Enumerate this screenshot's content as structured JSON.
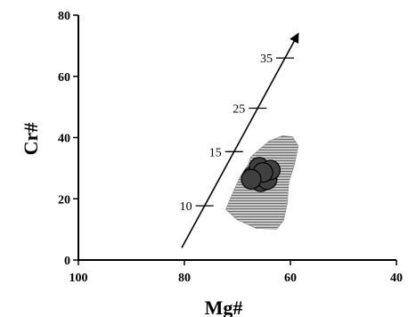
{
  "chart_data": {
    "type": "scatter",
    "xlabel": "Mg#",
    "ylabel": "Cr#",
    "xlim": [
      100,
      40
    ],
    "ylim": [
      0,
      80
    ],
    "x_axis_reversed": true,
    "xticks": [
      100,
      80,
      60,
      40
    ],
    "yticks": [
      0,
      20,
      40,
      60,
      80
    ],
    "grid": false,
    "shaded_field": {
      "color": "#a8a8a8",
      "pattern": "horizontal-lines",
      "polygon": [
        [
          67.5,
          33.7
        ],
        [
          64.0,
          38.9
        ],
        [
          61.5,
          40.6
        ],
        [
          59.6,
          40.3
        ],
        [
          58.5,
          37.3
        ],
        [
          59.2,
          31.4
        ],
        [
          60.3,
          25.4
        ],
        [
          60.6,
          18.3
        ],
        [
          61.3,
          12.9
        ],
        [
          62.6,
          10.1
        ],
        [
          66.4,
          10.3
        ],
        [
          70.0,
          13.1
        ],
        [
          72.2,
          16.5
        ],
        [
          71.1,
          21.1
        ],
        [
          69.6,
          26.9
        ],
        [
          67.9,
          31.4
        ]
      ]
    },
    "data_points": {
      "color": "#404040",
      "edge_color": "#000000",
      "points": [
        [
          67.1,
          27.4
        ],
        [
          65.6,
          25.6
        ],
        [
          64.4,
          26.3
        ],
        [
          65.9,
          30.3
        ],
        [
          63.8,
          29.4
        ],
        [
          65.2,
          28.6
        ],
        [
          67.4,
          26.4
        ]
      ]
    },
    "trend_arrow": {
      "start": [
        80.5,
        4.0
      ],
      "end": [
        58.5,
        74.0
      ],
      "labels": [
        {
          "text": "10",
          "x": 79.0,
          "y": 17.7
        },
        {
          "text": "15",
          "x": 74.8,
          "y": 35.4
        },
        {
          "text": "25",
          "x": 68.8,
          "y": 49.6
        },
        {
          "text": "35",
          "x": 62.0,
          "y": 66.0
        }
      ]
    }
  }
}
